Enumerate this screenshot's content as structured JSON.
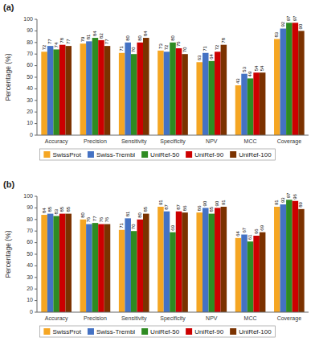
{
  "chart_data": [
    {
      "type": "bar",
      "title": "(a)",
      "categories": [
        "Accuracy",
        "Precision",
        "Sensitivity",
        "Specificity",
        "NPV",
        "MCC",
        "Coverage"
      ],
      "series": [
        {
          "name": "SwissProt",
          "color": "#F5A623",
          "values": [
            72,
            79,
            71,
            73,
            63,
            43,
            83
          ]
        },
        {
          "name": "Swiss-Trembl",
          "color": "#4472C4",
          "values": [
            77,
            81,
            80,
            72,
            71,
            53,
            92
          ]
        },
        {
          "name": "UniRef-50",
          "color": "#2E8B22",
          "values": [
            74,
            84,
            70,
            80,
            64,
            49,
            97
          ]
        },
        {
          "name": "UniRef-90",
          "color": "#CC0000",
          "values": [
            78,
            82,
            80,
            75,
            72,
            54,
            97
          ]
        },
        {
          "name": "UniRef-100",
          "color": "#7B3200",
          "values": [
            77,
            77,
            84,
            70,
            78,
            54,
            90
          ]
        }
      ],
      "ylabel": "Percentage (%)",
      "ylim": [
        0,
        100
      ],
      "yticks": [
        0,
        10,
        20,
        30,
        40,
        50,
        60,
        70,
        80,
        90,
        100
      ],
      "grid": false,
      "data_labels": true,
      "legend": "bottom"
    },
    {
      "type": "bar",
      "title": "(b)",
      "categories": [
        "Accuracy",
        "Precision",
        "Sensitivity",
        "Specificity",
        "NPV",
        "MCC",
        "Coverage"
      ],
      "series": [
        {
          "name": "SwissProt",
          "color": "#F5A623",
          "values": [
            84,
            80,
            71,
            91,
            86,
            64,
            91
          ]
        },
        {
          "name": "Swiss-Trembl",
          "color": "#4472C4",
          "values": [
            85,
            76,
            81,
            87,
            90,
            67,
            93
          ]
        },
        {
          "name": "UniRef-50",
          "color": "#2E8B22",
          "values": [
            83,
            77,
            70,
            69,
            85,
            61,
            97
          ]
        },
        {
          "name": "UniRef-90",
          "color": "#CC0000",
          "values": [
            85,
            76,
            80,
            87,
            90,
            66,
            96
          ]
        },
        {
          "name": "UniRef-100",
          "color": "#7B3200",
          "values": [
            85,
            76,
            85,
            86,
            91,
            69,
            89
          ]
        }
      ],
      "ylabel": "Percentage (%)",
      "ylim": [
        0,
        100
      ],
      "yticks": [
        0,
        10,
        20,
        30,
        40,
        50,
        60,
        70,
        80,
        90,
        100
      ],
      "grid": false,
      "data_labels": true,
      "legend": "bottom"
    }
  ]
}
